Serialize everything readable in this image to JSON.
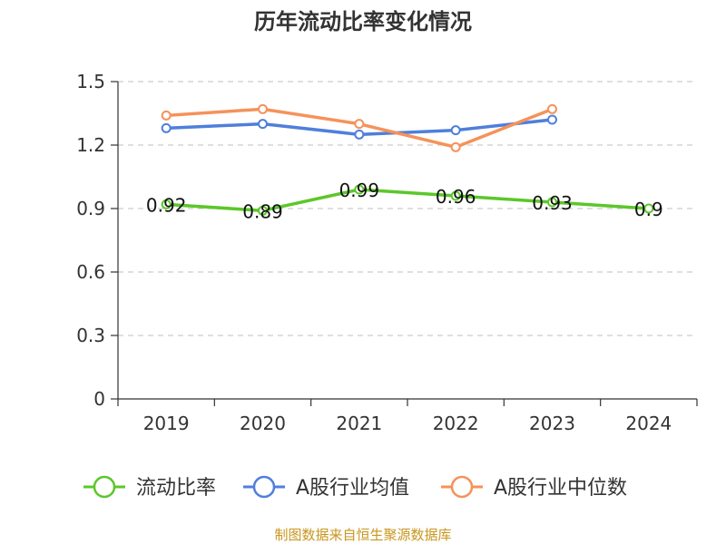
{
  "chart_data": {
    "type": "line",
    "title": "历年流动比率变化情况",
    "categories": [
      "2019",
      "2020",
      "2021",
      "2022",
      "2023",
      "2024"
    ],
    "y_ticks": [
      "0",
      "0.3",
      "0.6",
      "0.9",
      "1.2",
      "1.5"
    ],
    "ylim": [
      0,
      1.5
    ],
    "grid": true,
    "legend_position": "bottom",
    "series": [
      {
        "name": "流动比率",
        "color": "#5cc72a",
        "values": [
          0.92,
          0.89,
          0.99,
          0.96,
          0.93,
          0.9
        ],
        "labels": [
          "0.92",
          "0.89",
          "0.99",
          "0.96",
          "0.93",
          "0.9"
        ]
      },
      {
        "name": "A股行业均值",
        "color": "#4f7fdb",
        "values": [
          1.28,
          1.3,
          1.25,
          1.27,
          1.32,
          null
        ],
        "labels": []
      },
      {
        "name": "A股行业中位数",
        "color": "#f5925a",
        "values": [
          1.34,
          1.37,
          1.3,
          1.19,
          1.37,
          null
        ],
        "labels": []
      }
    ],
    "source": "制图数据来自恒生聚源数据库"
  }
}
